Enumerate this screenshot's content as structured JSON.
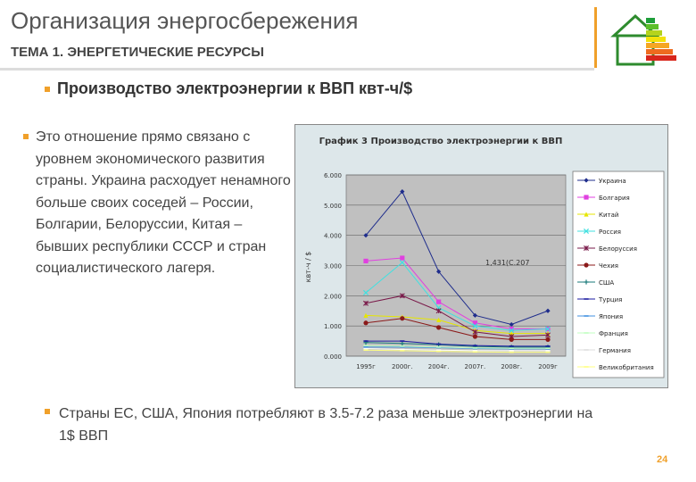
{
  "header": {
    "title": "Организация энергосбережения",
    "subtitle": "ТЕМА 1. ЭНЕРГЕТИЧЕСКИЕ РЕСУРСЫ"
  },
  "heading": "Производство электроэнергии к ВВП квт-ч/$",
  "paragraph": "Это отношение прямо связано с уровнем экономического развития страны. Украина расходует ненамного больше своих соседей – России, Болгарии, Белоруссии, Китая – бывших республики СССР и стран социалистического лагеря.",
  "note": "Страны ЕС, США, Япония потребляют в 3.5-7.2 раза меньше электроэнергии на 1$ ВВП",
  "page_number": "24",
  "colors": {
    "accent": "#f0a02a",
    "plot_bg": "#c0c0c0",
    "chart_bg": "#dde7ea"
  },
  "chart_data": {
    "type": "line",
    "title": "График 3 Производство электроэнергии к ВВП",
    "ylabel": "квт-ч / $",
    "ylim": [
      0,
      6
    ],
    "yticks": [
      "0.000",
      "1.000",
      "2.000",
      "3.000",
      "4.000",
      "5.000",
      "6.000"
    ],
    "categories": [
      "1995г",
      "2000г.",
      "2004г.",
      "2007г.",
      "2008г.",
      "2009г"
    ],
    "annotation": "1,431(С.207",
    "legend_position": "right",
    "grid": true,
    "series": [
      {
        "name": "Украина",
        "color": "#1f2d8c",
        "marker": "diamond",
        "values": [
          4.0,
          5.45,
          2.8,
          1.35,
          1.05,
          1.5
        ]
      },
      {
        "name": "Болгария",
        "color": "#e040e0",
        "marker": "square",
        "values": [
          3.15,
          3.25,
          1.8,
          1.1,
          0.9,
          0.9
        ]
      },
      {
        "name": "Китай",
        "color": "#e6e600",
        "marker": "triangle",
        "values": [
          1.35,
          1.3,
          1.2,
          0.85,
          0.75,
          0.75
        ]
      },
      {
        "name": "Россия",
        "color": "#40e0e0",
        "marker": "x",
        "values": [
          2.1,
          3.1,
          1.6,
          1.0,
          0.85,
          0.9
        ]
      },
      {
        "name": "Белоруссия",
        "color": "#7a1a4a",
        "marker": "star",
        "values": [
          1.75,
          2.0,
          1.5,
          0.8,
          0.65,
          0.7
        ]
      },
      {
        "name": "Чехия",
        "color": "#8b1a1a",
        "marker": "circle",
        "values": [
          1.1,
          1.25,
          0.95,
          0.65,
          0.55,
          0.55
        ]
      },
      {
        "name": "США",
        "color": "#1a7a7a",
        "marker": "plus",
        "values": [
          0.45,
          0.42,
          0.38,
          0.32,
          0.3,
          0.3
        ]
      },
      {
        "name": "Турция",
        "color": "#1a1aa0",
        "marker": "dash",
        "values": [
          0.5,
          0.5,
          0.4,
          0.35,
          0.33,
          0.33
        ]
      },
      {
        "name": "Япония",
        "color": "#4090e0",
        "marker": "dash",
        "values": [
          0.3,
          0.3,
          0.28,
          0.25,
          0.24,
          0.24
        ]
      },
      {
        "name": "Франция",
        "color": "#c0ffc0",
        "marker": "dash",
        "values": [
          0.35,
          0.33,
          0.3,
          0.27,
          0.26,
          0.26
        ]
      },
      {
        "name": "Германия",
        "color": "#ffffff",
        "marker": "dash",
        "values": [
          0.25,
          0.22,
          0.2,
          0.18,
          0.18,
          0.18
        ]
      },
      {
        "name": "Великобритания",
        "color": "#ffff80",
        "marker": "dash",
        "values": [
          0.2,
          0.18,
          0.16,
          0.14,
          0.13,
          0.13
        ]
      }
    ]
  }
}
